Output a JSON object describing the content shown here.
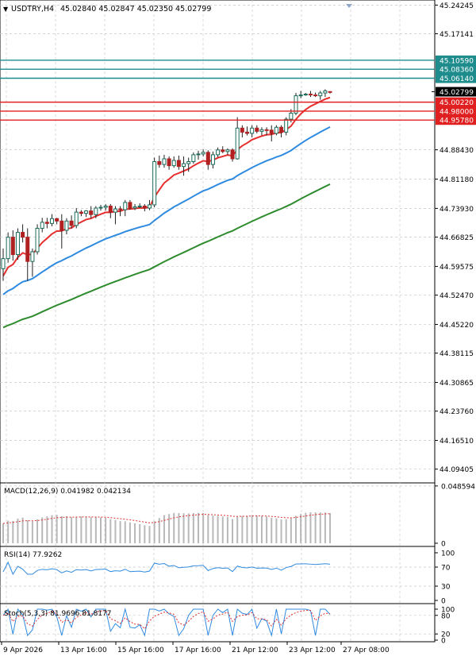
{
  "header": {
    "symbol_tf": "USDTRY,H4",
    "ohlc": "45.02840 45.02847 45.02350 45.02799"
  },
  "colors": {
    "bull": "#1b6b5a",
    "bear": "#b02020",
    "ema_fast": "#e62e2e",
    "ema_mid": "#2f8be0",
    "ema_slow": "#2e8b2e",
    "resistance": "#1e8c8c",
    "support": "#e02020",
    "grid": "#c8c8c8",
    "price_tag": "#000000"
  },
  "chart_data": [
    {
      "type": "candlestick",
      "ylim": [
        44.06,
        45.255
      ],
      "y_ticks": [
        "45.24245",
        "45.17141",
        "45.10590",
        "45.08360",
        "45.06140",
        "45.02799",
        "45.00220",
        "44.98000",
        "44.95780",
        "44.88430",
        "44.81180",
        "44.73930",
        "44.66825",
        "44.59575",
        "44.52470",
        "44.45220",
        "44.38115",
        "44.30865",
        "44.23760",
        "44.16510",
        "44.09405"
      ],
      "x_labels": [
        "9 Apr 2026",
        "13 Apr 16:00",
        "15 Apr 16:00",
        "17 Apr 16:00",
        "21 Apr 12:00",
        "23 Apr 12:00",
        "27 Apr 08:00"
      ],
      "resistance_levels": [
        45.1059,
        45.0836,
        45.0614
      ],
      "support_levels": [
        45.0022,
        44.98,
        44.9578
      ],
      "current_price": 45.02799,
      "candles": [
        [
          44.59,
          44.64,
          44.56,
          44.615
        ],
        [
          44.615,
          44.68,
          44.605,
          44.668
        ],
        [
          44.668,
          44.685,
          44.61,
          44.625
        ],
        [
          44.625,
          44.69,
          44.612,
          44.68
        ],
        [
          44.68,
          44.7,
          44.655,
          44.668
        ],
        [
          44.668,
          44.69,
          44.56,
          44.608
        ],
        [
          44.608,
          44.64,
          44.57,
          44.632
        ],
        [
          44.632,
          44.7,
          44.625,
          44.69
        ],
        [
          44.69,
          44.716,
          44.68,
          44.705
        ],
        [
          44.705,
          44.716,
          44.69,
          44.702
        ],
        [
          44.702,
          44.725,
          44.695,
          44.714
        ],
        [
          44.714,
          44.716,
          44.7,
          44.708
        ],
        [
          44.708,
          44.725,
          44.64,
          44.685
        ],
        [
          44.685,
          44.715,
          44.675,
          44.708
        ],
        [
          44.708,
          44.722,
          44.69,
          44.697
        ],
        [
          44.697,
          44.74,
          44.69,
          44.73
        ],
        [
          44.73,
          44.735,
          44.72,
          44.727
        ],
        [
          44.727,
          44.735,
          44.718,
          44.733
        ],
        [
          44.733,
          44.745,
          44.715,
          44.724
        ],
        [
          44.724,
          44.745,
          44.715,
          44.74
        ],
        [
          44.74,
          44.748,
          44.734,
          44.742
        ],
        [
          44.742,
          44.75,
          44.734,
          44.745
        ],
        [
          44.745,
          44.75,
          44.715,
          44.73
        ],
        [
          44.73,
          44.745,
          44.7,
          44.738
        ],
        [
          44.738,
          44.745,
          44.72,
          44.736
        ],
        [
          44.736,
          44.76,
          44.72,
          44.754
        ],
        [
          44.754,
          44.76,
          44.736,
          44.74
        ],
        [
          44.74,
          44.75,
          44.735,
          44.743
        ],
        [
          44.743,
          44.752,
          44.74,
          44.745
        ],
        [
          44.745,
          44.75,
          44.732,
          44.74
        ],
        [
          44.74,
          44.76,
          44.735,
          44.748
        ],
        [
          44.748,
          44.865,
          44.742,
          44.855
        ],
        [
          44.855,
          44.87,
          44.84,
          44.848
        ],
        [
          44.848,
          44.872,
          44.84,
          44.862
        ],
        [
          44.862,
          44.868,
          44.835,
          44.845
        ],
        [
          44.845,
          44.868,
          44.84,
          44.858
        ],
        [
          44.858,
          44.87,
          44.835,
          44.843
        ],
        [
          44.843,
          44.868,
          44.82,
          44.85
        ],
        [
          44.85,
          44.865,
          44.83,
          44.855
        ],
        [
          44.855,
          44.878,
          44.85,
          44.872
        ],
        [
          44.872,
          44.882,
          44.86,
          44.874
        ],
        [
          44.874,
          44.885,
          44.868,
          44.878
        ],
        [
          44.878,
          44.883,
          44.835,
          44.848
        ],
        [
          44.848,
          44.88,
          44.838,
          44.872
        ],
        [
          44.872,
          44.89,
          44.866,
          44.884
        ],
        [
          44.884,
          44.893,
          44.876,
          44.88
        ],
        [
          44.88,
          44.888,
          44.872,
          44.884
        ],
        [
          44.884,
          44.888,
          44.855,
          44.862
        ],
        [
          44.862,
          44.965,
          44.86,
          44.938
        ],
        [
          44.938,
          44.945,
          44.915,
          44.928
        ],
        [
          44.928,
          44.942,
          44.92,
          44.925
        ],
        [
          44.925,
          44.945,
          44.915,
          44.938
        ],
        [
          44.938,
          44.945,
          44.925,
          44.93
        ],
        [
          44.93,
          44.94,
          44.92,
          44.934
        ],
        [
          44.934,
          44.94,
          44.92,
          44.933
        ],
        [
          44.933,
          44.945,
          44.905,
          44.925
        ],
        [
          44.925,
          44.945,
          44.92,
          44.94
        ],
        [
          44.94,
          44.945,
          44.915,
          44.928
        ],
        [
          44.928,
          44.965,
          44.92,
          44.96
        ],
        [
          44.96,
          44.985,
          44.952,
          44.975
        ],
        [
          44.975,
          45.025,
          44.97,
          45.018
        ],
        [
          45.018,
          45.03,
          45.012,
          45.02
        ],
        [
          45.02,
          45.025,
          45.018,
          45.022
        ],
        [
          45.022,
          45.03,
          45.015,
          45.02
        ],
        [
          45.02,
          45.026,
          45.015,
          45.018
        ],
        [
          45.018,
          45.03,
          45.008,
          45.025
        ],
        [
          45.025,
          45.034,
          45.015,
          45.03
        ],
        [
          45.0284,
          45.02847,
          45.0235,
          45.02799
        ]
      ]
    },
    {
      "type": "line",
      "title": "MACD(12,26,9) 0.041982 0.042134",
      "ylim": [
        0,
        0.0485
      ],
      "y_ticks": [
        "0.048594",
        "0"
      ]
    },
    {
      "type": "line",
      "title": "RSI(14) 77.9262",
      "ylim": [
        0,
        100
      ],
      "y_ticks": [
        "100",
        "70",
        "30",
        "0"
      ]
    },
    {
      "type": "line",
      "title": "Stoch(5,3,3) 81.9696 81.8177",
      "ylim": [
        0,
        100
      ],
      "y_ticks": [
        "100",
        "80",
        "20",
        "0"
      ]
    }
  ]
}
